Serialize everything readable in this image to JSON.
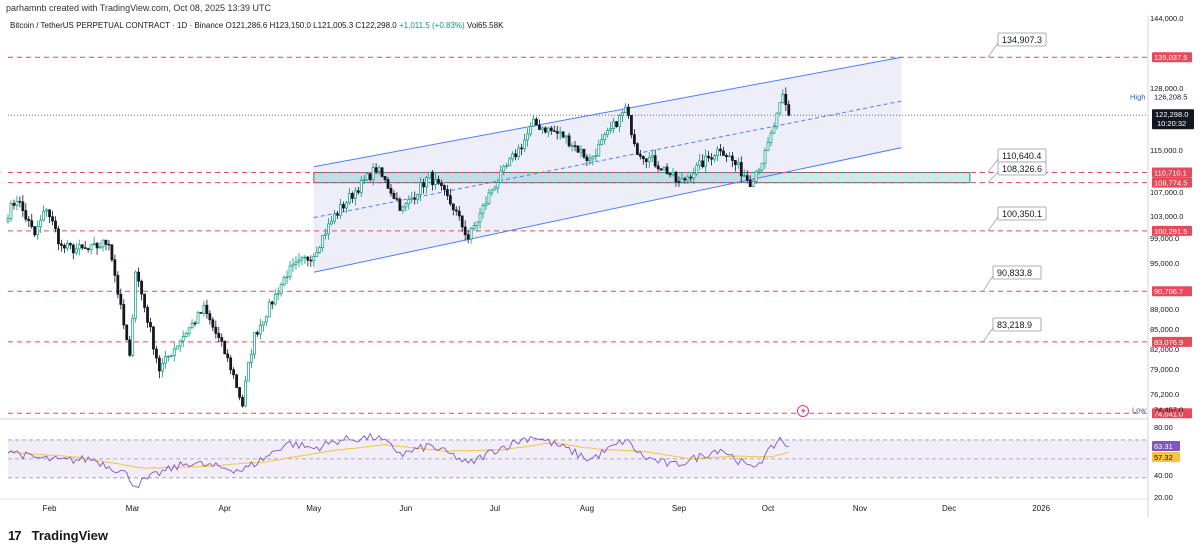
{
  "header": {
    "attribution": "parhamnb created with TradingView.com, Oct 08, 2025 13:39 UTC",
    "symbol": "Bitcoin / TetherUS PERPETUAL CONTRACT · 1D · Binance",
    "ohlc": "O121,286.6 H123,150.0 L121,005.3 C122,298.0",
    "change": "+1,011.5 (+0.83%)",
    "volume": "Vol65.58K"
  },
  "brand": {
    "name": "TradingView",
    "logo": "tradingview-logo-icon"
  },
  "colors": {
    "up": "#089981",
    "down": "#131722",
    "channel": "#4a7fff",
    "level": "#e54a5b",
    "zone": "#26a69a",
    "rsi": "#7e57c2",
    "rsi_ma": "#f5c242"
  },
  "chart_data": {
    "type": "candlestick",
    "x_axis_labels": [
      "Feb",
      "Mar",
      "Apr",
      "May",
      "Jun",
      "Jul",
      "Aug",
      "Sep",
      "Oct",
      "Nov",
      "Dec",
      "2026"
    ],
    "x_range": [
      "2025-01-18",
      "2026-02-06"
    ],
    "y_range": [
      73500,
      145000
    ],
    "price_ticks": [
      "144,000.0",
      "128,000.0",
      "115,000.0",
      "107,000.0",
      "103,000.0",
      "99,000.0",
      "95,000.0",
      "88,000.0",
      "85,000.0",
      "82,000.0",
      "79,000.0",
      "76,200.0"
    ],
    "price_anchors": [
      [
        "2025-01-18",
        103500
      ],
      [
        "2025-01-21",
        106000
      ],
      [
        "2025-01-27",
        99500
      ],
      [
        "2025-01-31",
        104500
      ],
      [
        "2025-02-05",
        97500
      ],
      [
        "2025-02-14",
        97000
      ],
      [
        "2025-02-21",
        98500
      ],
      [
        "2025-02-25",
        88000
      ],
      [
        "2025-02-28",
        80500
      ],
      [
        "2025-03-02",
        94000
      ],
      [
        "2025-03-10",
        79000
      ],
      [
        "2025-03-18",
        84000
      ],
      [
        "2025-03-25",
        88000
      ],
      [
        "2025-03-31",
        82500
      ],
      [
        "2025-04-07",
        75000
      ],
      [
        "2025-04-11",
        84000
      ],
      [
        "2025-04-22",
        93500
      ],
      [
        "2025-05-01",
        96500
      ],
      [
        "2025-05-08",
        103000
      ],
      [
        "2025-05-22",
        111500
      ],
      [
        "2025-05-31",
        104000
      ],
      [
        "2025-06-09",
        110000
      ],
      [
        "2025-06-17",
        104500
      ],
      [
        "2025-06-22",
        99000
      ],
      [
        "2025-06-30",
        107500
      ],
      [
        "2025-07-10",
        116000
      ],
      [
        "2025-07-14",
        120500
      ],
      [
        "2025-07-24",
        118000
      ],
      [
        "2025-08-02",
        113000
      ],
      [
        "2025-08-14",
        123500
      ],
      [
        "2025-08-18",
        115000
      ],
      [
        "2025-08-28",
        111000
      ],
      [
        "2025-09-01",
        108500
      ],
      [
        "2025-09-15",
        115500
      ],
      [
        "2025-09-25",
        109000
      ],
      [
        "2025-09-30",
        114000
      ],
      [
        "2025-10-06",
        126000
      ],
      [
        "2025-10-08",
        122298
      ]
    ],
    "lines": [
      {
        "y": 135037.5,
        "label": "135,037.5"
      },
      {
        "y": 110710.1,
        "label": "110,710.1"
      },
      {
        "y": 108774.5,
        "label": "108,774.5"
      },
      {
        "y": 100291.5,
        "label": "100,291.5"
      },
      {
        "y": 90706.7,
        "label": "90,706.7"
      },
      {
        "y": 83076.9,
        "label": "83,076.9"
      },
      {
        "y": 74041.0,
        "label": "74,041.0"
      }
    ],
    "callouts": [
      {
        "y": 135037.5,
        "label": "134,907.3"
      },
      {
        "y": 110710.1,
        "label": "110,640.4"
      },
      {
        "y": 108774.5,
        "label": "108,326.6"
      },
      {
        "y": 100291.5,
        "label": "100,350.1"
      },
      {
        "y": 90706.7,
        "label": "90,833.8"
      },
      {
        "y": 83076.9,
        "label": "83,218.9"
      }
    ],
    "markers": {
      "high_label": "High",
      "high_value": "126,208.5",
      "high_y": 126208.5,
      "low_label": "Low",
      "low_value": "74,457.0",
      "low_y": 74457,
      "last_price": "122,298.0",
      "countdown": "10:20:32",
      "last_y": 122298
    },
    "channel": {
      "start": "2025-05-01",
      "end": "2025-11-15",
      "upper": [
        111800,
        135037.5
      ],
      "lower": [
        93600,
        115500
      ],
      "mid": [
        102700,
        125268
      ]
    },
    "zone": {
      "start": "2025-05-01",
      "end": "2025-12-08",
      "top": 110710.1,
      "bottom": 108774.5
    },
    "rsi": {
      "y_range": [
        15,
        90
      ],
      "ticks": [
        "80.00",
        "40.00",
        "20.00"
      ],
      "overbought": 70,
      "oversold": 30,
      "value": "63.31",
      "ma_value": "57.32",
      "anchors": [
        [
          "2025-01-18",
          60
        ],
        [
          "2025-01-25",
          52
        ],
        [
          "2025-02-05",
          48
        ],
        [
          "2025-02-15",
          50
        ],
        [
          "2025-02-26",
          36
        ],
        [
          "2025-03-02",
          22
        ],
        [
          "2025-03-10",
          35
        ],
        [
          "2025-03-20",
          46
        ],
        [
          "2025-03-30",
          41
        ],
        [
          "2025-04-07",
          38
        ],
        [
          "2025-04-15",
          52
        ],
        [
          "2025-04-22",
          67
        ],
        [
          "2025-05-01",
          61
        ],
        [
          "2025-05-10",
          70
        ],
        [
          "2025-05-22",
          73
        ],
        [
          "2025-05-31",
          55
        ],
        [
          "2025-06-09",
          64
        ],
        [
          "2025-06-18",
          52
        ],
        [
          "2025-06-22",
          44
        ],
        [
          "2025-06-30",
          58
        ],
        [
          "2025-07-10",
          70
        ],
        [
          "2025-07-14",
          74
        ],
        [
          "2025-07-24",
          62
        ],
        [
          "2025-08-02",
          49
        ],
        [
          "2025-08-14",
          70
        ],
        [
          "2025-08-20",
          52
        ],
        [
          "2025-08-30",
          43
        ],
        [
          "2025-09-05",
          49
        ],
        [
          "2025-09-15",
          61
        ],
        [
          "2025-09-25",
          40
        ],
        [
          "2025-09-30",
          52
        ],
        [
          "2025-10-05",
          72
        ],
        [
          "2025-10-08",
          63
        ]
      ],
      "ma_anchors": [
        [
          "2025-01-18",
          57
        ],
        [
          "2025-02-10",
          52
        ],
        [
          "2025-03-05",
          40
        ],
        [
          "2025-03-25",
          42
        ],
        [
          "2025-04-15",
          47
        ],
        [
          "2025-05-08",
          59
        ],
        [
          "2025-05-25",
          65
        ],
        [
          "2025-06-15",
          58
        ],
        [
          "2025-07-05",
          60
        ],
        [
          "2025-07-20",
          67
        ],
        [
          "2025-08-05",
          60
        ],
        [
          "2025-08-20",
          58
        ],
        [
          "2025-09-05",
          50
        ],
        [
          "2025-09-20",
          53
        ],
        [
          "2025-10-02",
          52
        ],
        [
          "2025-10-08",
          57
        ]
      ]
    }
  }
}
